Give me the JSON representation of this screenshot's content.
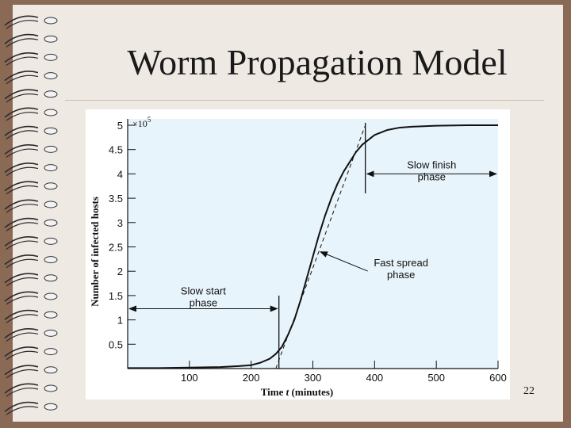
{
  "slide": {
    "title": "Worm Propagation Model",
    "page_number": "22"
  },
  "chart_data": {
    "type": "line",
    "title": "",
    "xlabel_prefix": "Time ",
    "xlabel_var": "t",
    "xlabel_suffix": " (minutes)",
    "ylabel": "Number of infected hosts",
    "y_multiplier": "×10",
    "y_multiplier_exp": "5",
    "xlim": [
      0,
      600
    ],
    "ylim": [
      0,
      5
    ],
    "x_ticks": [
      "100",
      "200",
      "300",
      "400",
      "500",
      "600"
    ],
    "y_ticks": [
      "0.5",
      "1",
      "1.5",
      "2",
      "2.5",
      "3",
      "3.5",
      "4",
      "4.5",
      "5"
    ],
    "series": [
      {
        "style": "solid",
        "x": [
          0,
          50,
          100,
          150,
          180,
          200,
          215,
          230,
          240,
          250,
          260,
          270,
          280,
          290,
          300,
          310,
          320,
          330,
          340,
          350,
          360,
          370,
          380,
          390,
          400,
          420,
          440,
          460,
          480,
          500,
          550,
          600
        ],
        "y": [
          0.01,
          0.01,
          0.02,
          0.03,
          0.05,
          0.07,
          0.12,
          0.2,
          0.3,
          0.45,
          0.7,
          1.0,
          1.4,
          1.85,
          2.3,
          2.75,
          3.15,
          3.5,
          3.8,
          4.05,
          4.25,
          4.45,
          4.6,
          4.7,
          4.8,
          4.9,
          4.95,
          4.97,
          4.98,
          4.99,
          5.0,
          5.0
        ]
      },
      {
        "style": "dashed",
        "x": [
          240,
          385
        ],
        "y": [
          0.0,
          5.0
        ]
      }
    ],
    "annotations": [
      {
        "line1": "Slow start",
        "line2": "phase",
        "arrow": "double",
        "from_x": 0,
        "to_x": 245,
        "y": 1.23
      },
      {
        "line1": "Fast spread",
        "line2": "phase",
        "arrow": "pointer",
        "target_x": 307,
        "target_y": 2.4,
        "text_x": 430,
        "text_y": 2.1
      },
      {
        "line1": "Slow finish",
        "line2": "phase",
        "arrow": "double",
        "from_x": 385,
        "to_x": 600,
        "y": 4.0
      }
    ],
    "boundary_lines": [
      {
        "x": 245,
        "y_from": 0.0,
        "y_to": 1.5
      },
      {
        "x": 385,
        "y_from": 3.6,
        "y_to": 5.05
      }
    ],
    "grid": false,
    "legend": "none",
    "colors": {
      "plot_bg": "#e8f4fb",
      "line": "#111111"
    }
  }
}
